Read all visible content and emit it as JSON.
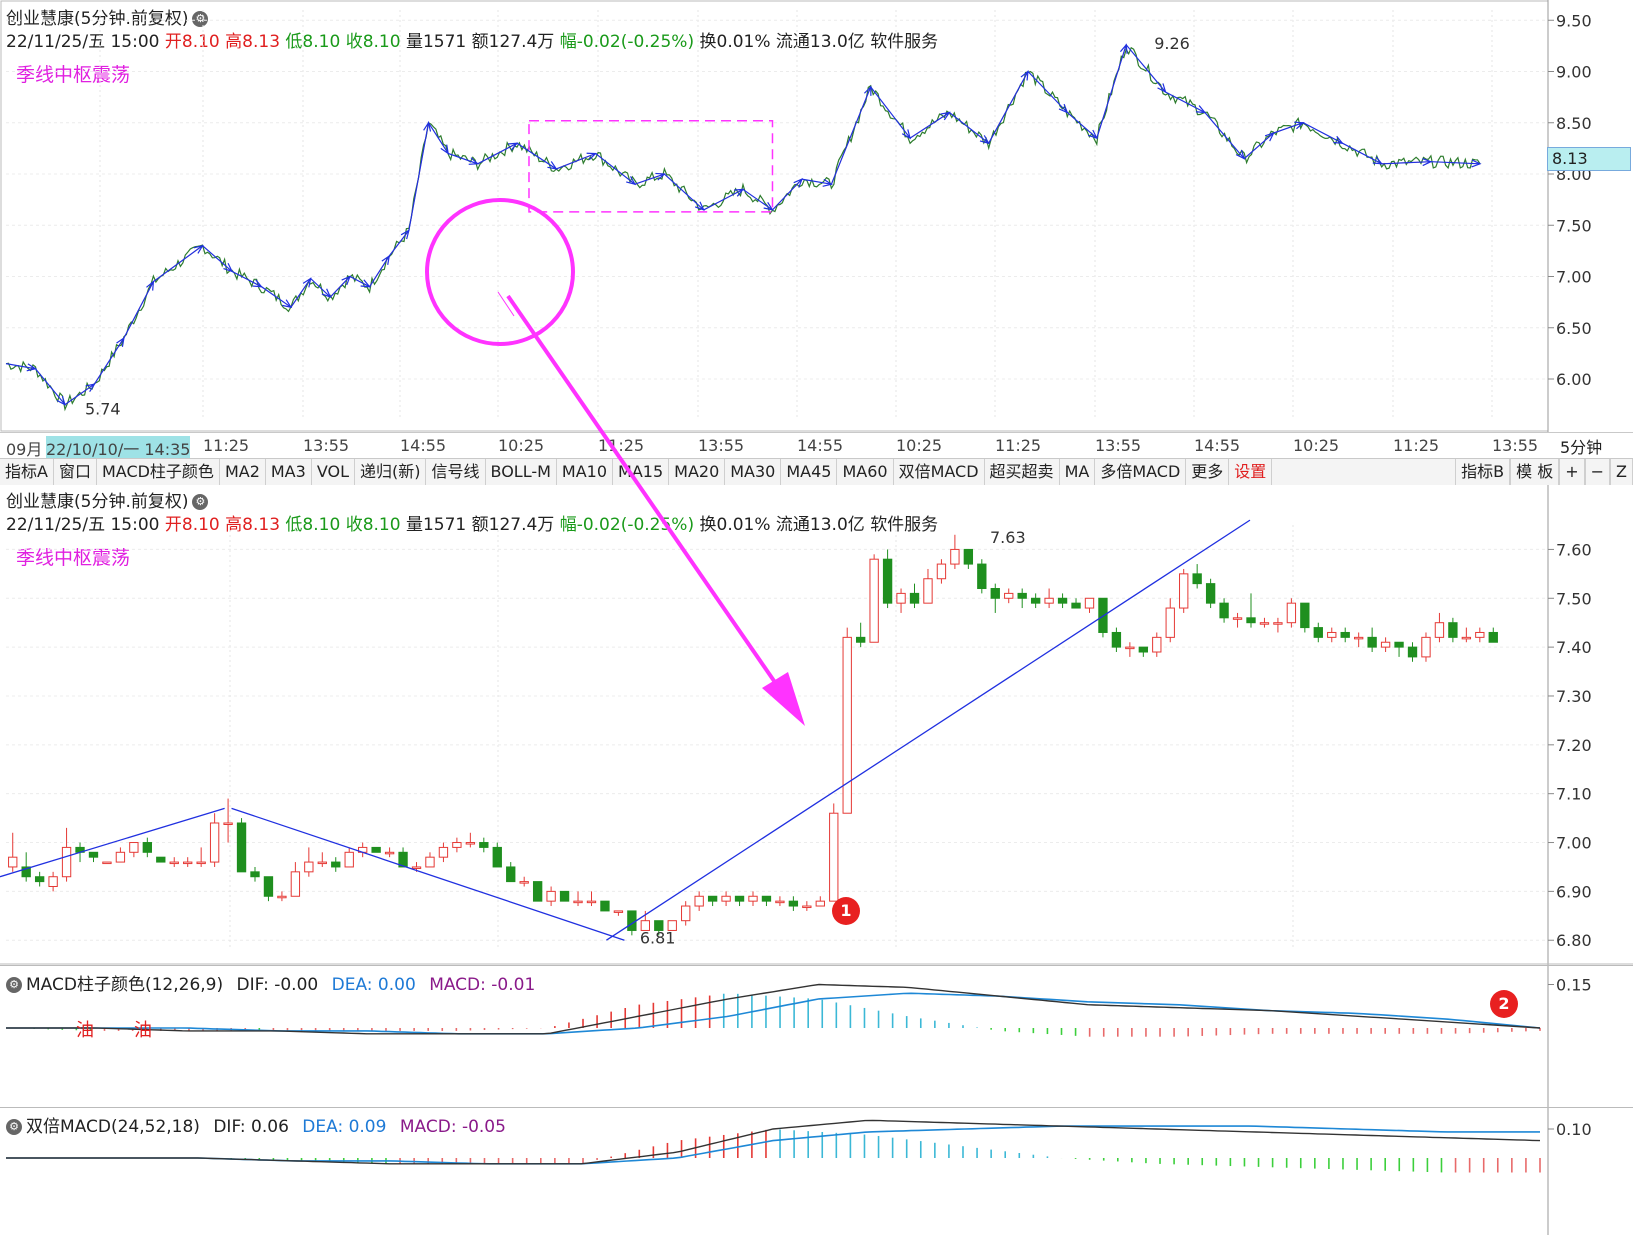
{
  "stock": {
    "title": "创业慧康(5分钟.前复权)",
    "date": "22/11/25/五 15:00",
    "open_label": "开",
    "open": "8.10",
    "high_label": "高",
    "high": "8.13",
    "low_label": "低",
    "low": "8.10",
    "close_label": "收",
    "close": "8.10",
    "vol_label": "量",
    "vol": "1571",
    "amt_label": "额",
    "amt": "127.4万",
    "chg_label": "幅",
    "chg": "-0.02(-0.25%)",
    "turn_label": "换",
    "turn": "0.01%",
    "float_label": "流通",
    "float": "13.0亿",
    "sector": "软件服务"
  },
  "annotation": "季线中枢震荡",
  "price_tag": "8.13",
  "timeframe": "5分钟",
  "time_axis": {
    "labels": [
      "09月",
      "22/10/10/一 14:35",
      "11:25",
      "13:55",
      "14:55",
      "10:25",
      "11:25",
      "13:55",
      "14:55",
      "10:25",
      "11:25",
      "13:55",
      "14:55",
      "10:25",
      "11:25",
      "13:55"
    ]
  },
  "toolbar": {
    "items": [
      "指标A",
      "窗口",
      "MACD柱子颜色",
      "MA2",
      "MA3",
      "VOL",
      "递归(新)",
      "信号线",
      "BOLL-M",
      "MA10",
      "MA15",
      "MA20",
      "MA30",
      "MA45",
      "MA60",
      "双倍MACD",
      "超买超卖",
      "MA",
      "多倍MACD",
      "更多",
      "设置"
    ],
    "right_items": [
      "指标B",
      "模 板",
      "+",
      "−",
      "Z"
    ]
  },
  "markers": {
    "one": "1",
    "two": "2"
  },
  "macd1": {
    "name": "MACD柱子颜色(12,26,9)",
    "dif": "DIF: -0.00",
    "dea": "DEA: 0.00",
    "macd": "MACD: -0.01",
    "tick": "0.15",
    "oil_text": [
      "油",
      "油"
    ]
  },
  "macd2": {
    "name": "双倍MACD(24,52,18)",
    "dif": "DIF: 0.06",
    "dea": "DEA: 0.09",
    "macd": "MACD: -0.05",
    "tick": "0.10"
  },
  "colors": {
    "up": "#e53935",
    "down": "#1f8f1f",
    "trend": "#2030e0",
    "highlight": "#ff33ff",
    "dea": "#1e88d6",
    "dif": "#333333"
  },
  "chart_data": [
    {
      "type": "line",
      "title": "创业慧康(5分钟.前复权)",
      "y_ticks": [
        "9.50",
        "9.00",
        "8.50",
        "8.00",
        "7.50",
        "7.00",
        "6.50",
        "6.00"
      ],
      "ylim": [
        5.6,
        9.6
      ],
      "x": [
        0,
        6,
        12,
        18,
        24,
        30,
        40,
        46,
        52,
        58,
        62,
        66,
        70,
        74,
        78,
        82,
        86,
        90,
        96,
        104,
        112,
        120,
        128,
        134,
        142,
        150,
        156,
        162,
        168,
        176,
        184,
        192,
        200,
        208,
        216,
        222,
        228,
        236,
        244,
        252,
        258,
        264,
        272,
        280,
        290,
        300
      ],
      "values": [
        6.15,
        6.1,
        5.75,
        5.95,
        6.4,
        6.95,
        7.3,
        7.05,
        6.9,
        6.7,
        6.98,
        6.8,
        7.0,
        6.9,
        7.2,
        7.45,
        8.5,
        8.2,
        8.1,
        8.3,
        8.05,
        8.2,
        7.9,
        8.0,
        7.65,
        7.85,
        7.65,
        7.95,
        7.9,
        8.85,
        8.35,
        8.6,
        8.3,
        9.0,
        8.6,
        8.35,
        9.26,
        8.8,
        8.6,
        8.15,
        8.4,
        8.5,
        8.3,
        8.1,
        8.12,
        8.1
      ],
      "annotations": [
        "5.74",
        "9.26"
      ]
    },
    {
      "type": "bar",
      "title": "创业慧康(5分钟.前复权)",
      "y_ticks": [
        "7.60",
        "7.50",
        "7.40",
        "7.30",
        "7.20",
        "7.10",
        "7.00",
        "6.90",
        "6.80"
      ],
      "ylim": [
        6.78,
        7.65
      ],
      "ohlc": [
        [
          6.95,
          6.97,
          7.02,
          6.94
        ],
        [
          6.95,
          6.93,
          6.98,
          6.92
        ],
        [
          6.93,
          6.92,
          6.94,
          6.91
        ],
        [
          6.91,
          6.93,
          6.94,
          6.9
        ],
        [
          6.93,
          6.99,
          7.03,
          6.92
        ],
        [
          6.99,
          6.98,
          7.0,
          6.96
        ],
        [
          6.98,
          6.97,
          6.98,
          6.96
        ],
        [
          6.96,
          6.96,
          6.96,
          6.96
        ],
        [
          6.96,
          6.98,
          6.99,
          6.96
        ],
        [
          6.98,
          7.0,
          7.0,
          6.97
        ],
        [
          7.0,
          6.98,
          7.01,
          6.97
        ],
        [
          6.97,
          6.96,
          6.97,
          6.96
        ],
        [
          6.96,
          6.96,
          6.97,
          6.95
        ],
        [
          6.96,
          6.96,
          6.97,
          6.95
        ],
        [
          6.96,
          6.96,
          6.99,
          6.95
        ],
        [
          6.96,
          7.04,
          7.06,
          6.95
        ],
        [
          7.04,
          7.04,
          7.09,
          7.0
        ],
        [
          7.04,
          6.94,
          7.05,
          6.94
        ],
        [
          6.94,
          6.93,
          6.95,
          6.92
        ],
        [
          6.93,
          6.89,
          6.93,
          6.88
        ],
        [
          6.89,
          6.89,
          6.9,
          6.88
        ],
        [
          6.89,
          6.94,
          6.96,
          6.89
        ],
        [
          6.94,
          6.96,
          6.99,
          6.93
        ],
        [
          6.96,
          6.96,
          6.98,
          6.95
        ],
        [
          6.96,
          6.95,
          6.97,
          6.94
        ],
        [
          6.95,
          6.98,
          6.99,
          6.95
        ],
        [
          6.98,
          6.99,
          7.0,
          6.97
        ],
        [
          6.99,
          6.98,
          6.99,
          6.98
        ],
        [
          6.98,
          6.98,
          6.99,
          6.97
        ],
        [
          6.98,
          6.95,
          6.99,
          6.95
        ],
        [
          6.95,
          6.95,
          6.96,
          6.94
        ],
        [
          6.95,
          6.97,
          6.98,
          6.95
        ],
        [
          6.97,
          6.99,
          7.0,
          6.96
        ],
        [
          6.99,
          7.0,
          7.01,
          6.98
        ],
        [
          7.0,
          7.0,
          7.02,
          6.99
        ],
        [
          7.0,
          6.99,
          7.01,
          6.98
        ],
        [
          6.99,
          6.95,
          7.0,
          6.95
        ],
        [
          6.95,
          6.92,
          6.96,
          6.92
        ],
        [
          6.92,
          6.92,
          6.93,
          6.91
        ],
        [
          6.92,
          6.88,
          6.92,
          6.88
        ],
        [
          6.88,
          6.9,
          6.91,
          6.87
        ],
        [
          6.9,
          6.88,
          6.9,
          6.88
        ],
        [
          6.88,
          6.88,
          6.9,
          6.87
        ],
        [
          6.88,
          6.88,
          6.9,
          6.87
        ],
        [
          6.88,
          6.86,
          6.88,
          6.86
        ],
        [
          6.86,
          6.86,
          6.86,
          6.85
        ],
        [
          6.86,
          6.82,
          6.86,
          6.81
        ],
        [
          6.82,
          6.84,
          6.86,
          6.82
        ],
        [
          6.84,
          6.82,
          6.84,
          6.81
        ],
        [
          6.82,
          6.84,
          6.84,
          6.82
        ],
        [
          6.84,
          6.87,
          6.88,
          6.83
        ],
        [
          6.87,
          6.89,
          6.9,
          6.86
        ],
        [
          6.89,
          6.88,
          6.89,
          6.87
        ],
        [
          6.88,
          6.89,
          6.9,
          6.87
        ],
        [
          6.89,
          6.88,
          6.89,
          6.87
        ],
        [
          6.88,
          6.89,
          6.9,
          6.87
        ],
        [
          6.89,
          6.88,
          6.89,
          6.87
        ],
        [
          6.88,
          6.88,
          6.89,
          6.87
        ],
        [
          6.88,
          6.87,
          6.89,
          6.86
        ],
        [
          6.87,
          6.87,
          6.88,
          6.86
        ],
        [
          6.87,
          6.88,
          6.89,
          6.87
        ],
        [
          6.88,
          7.06,
          7.08,
          7.06
        ],
        [
          7.06,
          7.42,
          7.44,
          7.06
        ],
        [
          7.42,
          7.41,
          7.45,
          7.4
        ],
        [
          7.41,
          7.58,
          7.59,
          7.46
        ],
        [
          7.58,
          7.49,
          7.6,
          7.48
        ],
        [
          7.49,
          7.51,
          7.52,
          7.47
        ],
        [
          7.51,
          7.49,
          7.53,
          7.48
        ],
        [
          7.49,
          7.54,
          7.56,
          7.49
        ],
        [
          7.54,
          7.57,
          7.58,
          7.53
        ],
        [
          7.57,
          7.6,
          7.63,
          7.56
        ],
        [
          7.6,
          7.57,
          7.6,
          7.56
        ],
        [
          7.57,
          7.52,
          7.58,
          7.51
        ],
        [
          7.52,
          7.5,
          7.53,
          7.47
        ],
        [
          7.5,
          7.51,
          7.52,
          7.49
        ],
        [
          7.51,
          7.5,
          7.52,
          7.48
        ],
        [
          7.5,
          7.49,
          7.51,
          7.48
        ],
        [
          7.49,
          7.5,
          7.52,
          7.48
        ],
        [
          7.5,
          7.49,
          7.51,
          7.48
        ],
        [
          7.49,
          7.48,
          7.5,
          7.48
        ],
        [
          7.48,
          7.5,
          7.5,
          7.47
        ],
        [
          7.5,
          7.43,
          7.5,
          7.42
        ],
        [
          7.43,
          7.4,
          7.44,
          7.39
        ],
        [
          7.4,
          7.4,
          7.41,
          7.38
        ],
        [
          7.4,
          7.39,
          7.4,
          7.38
        ],
        [
          7.39,
          7.42,
          7.43,
          7.38
        ],
        [
          7.42,
          7.48,
          7.5,
          7.41
        ],
        [
          7.48,
          7.55,
          7.56,
          7.47
        ],
        [
          7.55,
          7.53,
          7.57,
          7.52
        ],
        [
          7.53,
          7.49,
          7.54,
          7.48
        ],
        [
          7.49,
          7.46,
          7.5,
          7.45
        ],
        [
          7.46,
          7.46,
          7.47,
          7.44
        ],
        [
          7.46,
          7.45,
          7.51,
          7.44
        ],
        [
          7.45,
          7.45,
          7.46,
          7.44
        ],
        [
          7.45,
          7.45,
          7.46,
          7.43
        ],
        [
          7.45,
          7.49,
          7.5,
          7.44
        ],
        [
          7.49,
          7.44,
          7.49,
          7.43
        ],
        [
          7.44,
          7.42,
          7.45,
          7.41
        ],
        [
          7.42,
          7.43,
          7.44,
          7.41
        ],
        [
          7.43,
          7.42,
          7.44,
          7.41
        ],
        [
          7.42,
          7.42,
          7.43,
          7.4
        ],
        [
          7.42,
          7.4,
          7.44,
          7.39
        ],
        [
          7.4,
          7.41,
          7.42,
          7.39
        ],
        [
          7.41,
          7.4,
          7.41,
          7.38
        ],
        [
          7.4,
          7.38,
          7.41,
          7.37
        ],
        [
          7.38,
          7.42,
          7.43,
          7.37
        ],
        [
          7.42,
          7.45,
          7.47,
          7.41
        ],
        [
          7.45,
          7.42,
          7.46,
          7.41
        ],
        [
          7.42,
          7.42,
          7.44,
          7.41
        ],
        [
          7.42,
          7.43,
          7.44,
          7.41
        ],
        [
          7.43,
          7.41,
          7.44,
          7.41
        ]
      ],
      "annotations": [
        "7.63",
        "6.81"
      ]
    },
    {
      "type": "bar",
      "title": "MACD柱子颜色(12,26,9)",
      "series": [
        {
          "name": "DIF",
          "values": [
            -0.0,
            -0.0,
            -0.01,
            -0.01,
            -0.02,
            -0.02,
            -0.02,
            0.04,
            0.1,
            0.15,
            0.14,
            0.11,
            0.08,
            0.07,
            0.06,
            0.04,
            0.02,
            -0.0
          ]
        },
        {
          "name": "DEA",
          "values": [
            0.0,
            0.0,
            -0.0,
            -0.01,
            -0.01,
            -0.02,
            -0.02,
            0.0,
            0.04,
            0.1,
            0.12,
            0.11,
            0.09,
            0.08,
            0.06,
            0.05,
            0.03,
            0.0
          ]
        },
        {
          "name": "MACD",
          "values": [
            -0.0,
            -0.01,
            -0.01,
            -0.01,
            -0.01,
            -0.01,
            0.0,
            0.08,
            0.12,
            0.1,
            0.04,
            -0.01,
            -0.03,
            -0.03,
            -0.02,
            -0.02,
            -0.02,
            -0.01
          ]
        }
      ],
      "y_ticks": [
        "0.15"
      ]
    },
    {
      "type": "bar",
      "title": "双倍MACD(24,52,18)",
      "series": [
        {
          "name": "DIF",
          "values": [
            0.0,
            0.0,
            0.0,
            -0.01,
            -0.02,
            -0.02,
            -0.02,
            0.02,
            0.1,
            0.13,
            0.12,
            0.11,
            0.1,
            0.09,
            0.08,
            0.07,
            0.06
          ]
        },
        {
          "name": "DEA",
          "values": [
            0.0,
            0.0,
            0.0,
            -0.01,
            -0.01,
            -0.02,
            -0.02,
            0.0,
            0.06,
            0.09,
            0.1,
            0.11,
            0.11,
            0.11,
            0.1,
            0.09,
            0.09
          ]
        },
        {
          "name": "MACD",
          "values": [
            0.0,
            0.0,
            -0.0,
            -0.01,
            -0.02,
            -0.02,
            -0.02,
            0.06,
            0.1,
            0.08,
            0.04,
            0.0,
            -0.02,
            -0.03,
            -0.04,
            -0.05,
            -0.05
          ]
        }
      ],
      "y_ticks": [
        "0.10"
      ]
    }
  ]
}
